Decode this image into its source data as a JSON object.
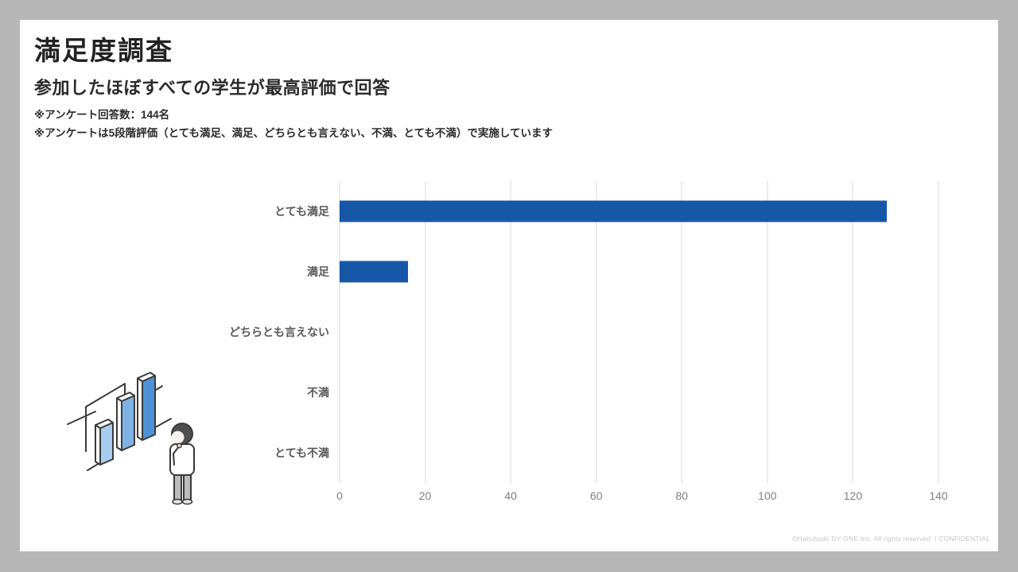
{
  "slide": {
    "title": "満足度調査",
    "subtitle": "参加したほぼすべての学生が最高評価で回答",
    "notes": [
      "※アンケート回答数：144名",
      "※アンケートは5段階評価（とても満足、満足、どちらとも言えない、不満、とても不満）で実施しています"
    ],
    "footer": "©Hakuhodo DY ONE Inc. All rights reserved. | CONFIDENTIAL"
  },
  "chart_data": {
    "type": "bar",
    "orientation": "horizontal",
    "title": "",
    "categories": [
      "とても満足",
      "満足",
      "どちらとも言えない",
      "不満",
      "とても不満"
    ],
    "values": [
      128,
      16,
      0,
      0,
      0
    ],
    "xlabel": "",
    "ylabel": "",
    "xlim": [
      0,
      140
    ],
    "xticks": [
      0,
      20,
      40,
      60,
      80,
      100,
      120,
      140
    ],
    "grid": true,
    "legend": false,
    "bar_color": "#1757a8",
    "gridline_color": "#d9d9d9"
  },
  "theme": {
    "bar_blue": "#1757a8",
    "frame_gray": "#b7b7b7",
    "category_label_gray": "#595959",
    "tick_label_gray": "#7f7f7f"
  },
  "illustration": {
    "name": "person-viewing-bar-chart"
  }
}
